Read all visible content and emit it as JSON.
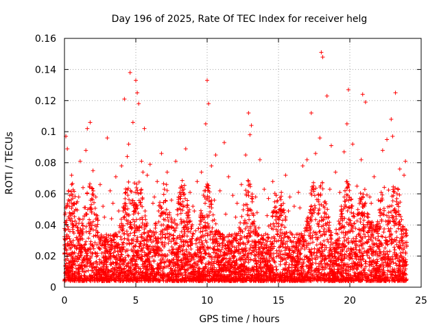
{
  "chart_data": {
    "type": "scatter",
    "title": "Day 196 of 2025, Rate Of TEC Index for receiver helg",
    "xlabel": "GPS time / hours",
    "ylabel": "ROTI / TECUs",
    "xlim": [
      0,
      25
    ],
    "ylim": [
      0,
      0.16
    ],
    "xticks": [
      0,
      5,
      10,
      15,
      20,
      25
    ],
    "yticks": [
      0,
      0.02,
      0.04,
      0.06,
      0.08,
      0.1,
      0.12,
      0.14,
      0.16
    ],
    "xtick_labels": [
      "0",
      "5",
      "10",
      "15",
      "20",
      "25"
    ],
    "ytick_labels": [
      "0",
      "0.02",
      "0.04",
      "0.06",
      "0.08",
      "0.1",
      "0.12",
      "0.14",
      "0.16"
    ],
    "grid": true,
    "marker": "plus",
    "color": "#ff0000",
    "series": [
      {
        "x": [
          0.1,
          0.2,
          0.3,
          0.5,
          0.6,
          0.9,
          1.1,
          1.3,
          1.5,
          1.6,
          1.8,
          2.0,
          2.2,
          2.5,
          2.8,
          3.0,
          3.2,
          3.4,
          3.6,
          3.8,
          4.0,
          4.2,
          4.4,
          4.5,
          4.6,
          4.8,
          5.0,
          5.1,
          5.2,
          5.4,
          5.6,
          5.8,
          6.0,
          6.2,
          6.5,
          6.8,
          7.0,
          7.2,
          7.5,
          7.8,
          8.0,
          8.2,
          8.5,
          8.8,
          9.0,
          9.3,
          9.6,
          9.9,
          10.0,
          10.1,
          10.3,
          10.6,
          10.9,
          11.2,
          11.5,
          11.8,
          12.1,
          12.4,
          12.7,
          12.9,
          13.0,
          13.1,
          13.4,
          13.7,
          14.0,
          14.3,
          14.6,
          14.9,
          15.2,
          15.5,
          15.8,
          16.1,
          16.4,
          16.7,
          17.0,
          17.3,
          17.6,
          17.9,
          18.0,
          18.1,
          18.4,
          18.7,
          19.0,
          19.3,
          19.6,
          19.8,
          19.9,
          20.2,
          20.5,
          20.8,
          20.9,
          21.1,
          21.4,
          21.7,
          22.0,
          22.3,
          22.6,
          22.9,
          23.0,
          23.2,
          23.5,
          23.8,
          23.9,
          0.4,
          1.0,
          1.9,
          2.7,
          3.3,
          4.3,
          4.9,
          5.5,
          6.3,
          7.1,
          8.3,
          9.1,
          9.8,
          10.5,
          11.3,
          12.0,
          12.8,
          13.5,
          14.2,
          15.0,
          15.7,
          16.5,
          17.2,
          17.8,
          18.6,
          19.4,
          20.1,
          20.7,
          21.5,
          22.2,
          22.8,
          23.4
        ],
        "y": [
          0.097,
          0.089,
          0.062,
          0.072,
          0.048,
          0.055,
          0.081,
          0.064,
          0.088,
          0.102,
          0.106,
          0.075,
          0.058,
          0.066,
          0.045,
          0.096,
          0.062,
          0.054,
          0.071,
          0.049,
          0.078,
          0.121,
          0.084,
          0.092,
          0.138,
          0.106,
          0.133,
          0.125,
          0.118,
          0.081,
          0.102,
          0.072,
          0.079,
          0.054,
          0.068,
          0.086,
          0.063,
          0.074,
          0.056,
          0.081,
          0.058,
          0.065,
          0.089,
          0.061,
          0.052,
          0.068,
          0.074,
          0.105,
          0.133,
          0.118,
          0.078,
          0.085,
          0.062,
          0.093,
          0.071,
          0.059,
          0.054,
          0.066,
          0.085,
          0.112,
          0.098,
          0.104,
          0.058,
          0.082,
          0.063,
          0.057,
          0.068,
          0.055,
          0.061,
          0.072,
          0.058,
          0.052,
          0.061,
          0.078,
          0.082,
          0.112,
          0.086,
          0.096,
          0.151,
          0.148,
          0.123,
          0.091,
          0.074,
          0.061,
          0.087,
          0.105,
          0.127,
          0.092,
          0.065,
          0.082,
          0.124,
          0.119,
          0.058,
          0.071,
          0.056,
          0.088,
          0.095,
          0.108,
          0.097,
          0.125,
          0.076,
          0.072,
          0.081,
          0.043,
          0.058,
          0.048,
          0.052,
          0.044,
          0.061,
          0.067,
          0.074,
          0.058,
          0.047,
          0.055,
          0.049,
          0.062,
          0.056,
          0.047,
          0.045,
          0.053,
          0.048,
          0.046,
          0.044,
          0.049,
          0.051,
          0.048,
          0.055,
          0.063,
          0.052,
          0.048,
          0.057,
          0.054,
          0.061,
          0.052,
          0.049
        ]
      }
    ],
    "dense_cloud": {
      "x_range": [
        0,
        24
      ],
      "y_floor": 0.004,
      "y_typical_max": 0.03,
      "peak_hours": [
        0.5,
        1.8,
        4.5,
        5.2,
        7.0,
        8.3,
        10.0,
        12.9,
        15.0,
        17.5,
        18.0,
        19.8,
        21.0,
        22.5,
        23.2
      ]
    }
  }
}
